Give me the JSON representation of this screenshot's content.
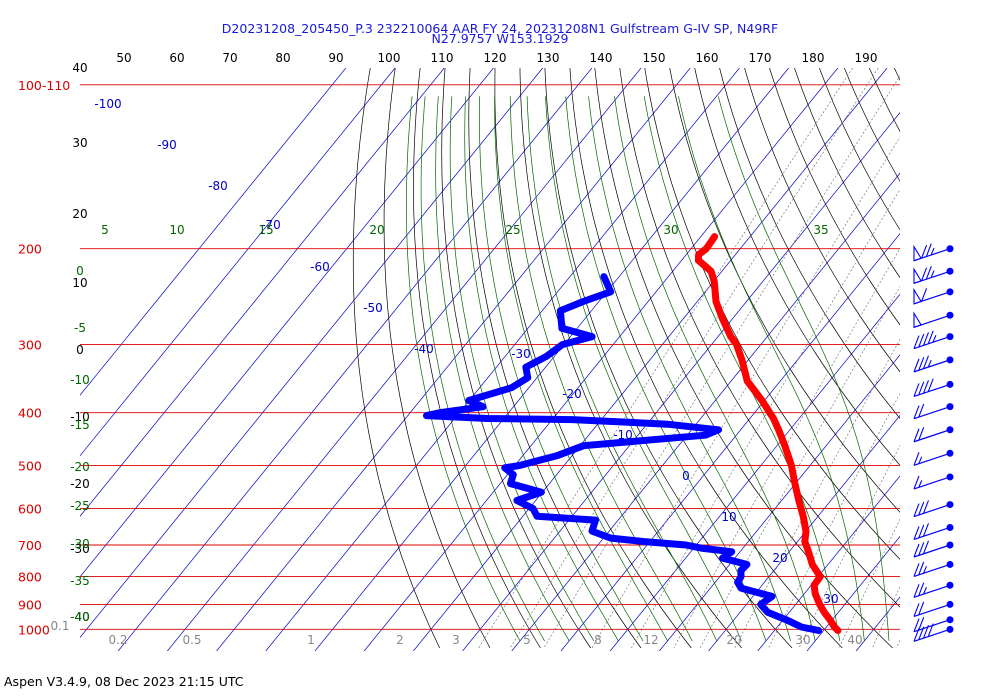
{
  "header": {
    "title": "D20231208_205450_P.3 232210064 AAR FY 24, 20231208N1 Gulfstream G-IV SP, N49RF",
    "location": "N27.9757 W153.1929"
  },
  "footer": {
    "version": "Aspen V3.4.9, 08 Dec 2023  21:15 UTC"
  },
  "colors": {
    "pressure": "#dd0000",
    "temp": "#ff0000",
    "dew": "#0000ff",
    "isotherm": "#0000cc",
    "dry_adiabat": "#000000",
    "moist_adiabat": "#006600",
    "mixing_ratio": "#777777"
  },
  "chart_data": {
    "type": "skew-t",
    "pressure_levels": [
      {
        "p": 100,
        "label": "100-110"
      },
      {
        "p": 200,
        "label": "200"
      },
      {
        "p": 300,
        "label": "300"
      },
      {
        "p": 400,
        "label": "400"
      },
      {
        "p": 500,
        "label": "500"
      },
      {
        "p": 600,
        "label": "600"
      },
      {
        "p": 700,
        "label": "700"
      },
      {
        "p": 800,
        "label": "800"
      },
      {
        "p": 900,
        "label": "900"
      },
      {
        "p": 1000,
        "label": "1000"
      }
    ],
    "top_temp_labels": [
      "50",
      "60",
      "70",
      "80",
      "90",
      "100",
      "110",
      "120",
      "130",
      "140",
      "150",
      "160",
      "170",
      "180",
      "190"
    ],
    "left_black_labels": [
      "40",
      "30",
      "20",
      "10",
      "0",
      "-10",
      "-20",
      "-30",
      "-40"
    ],
    "isotherm_labels": [
      "-100",
      "-90",
      "-80",
      "-70",
      "-60",
      "-50",
      "-40",
      "-30",
      "-20",
      "-10",
      "0",
      "10",
      "20",
      "30"
    ],
    "moist_labels_top": [
      "5",
      "10",
      "15",
      "20",
      "25",
      "30",
      "35"
    ],
    "moist_labels_left": [
      "0",
      "-5",
      "-10",
      "-15",
      "-20",
      "-25",
      "-30",
      "-35",
      "-40"
    ],
    "mixing_labels": [
      "0.1",
      "0.2",
      "0.5",
      "1",
      "2",
      "3",
      "5",
      "8",
      "12",
      "20",
      "30",
      "40"
    ],
    "temperature_profile": [
      [
        190,
        -67.2
      ],
      [
        200,
        -66.9
      ],
      [
        205,
        -67.5
      ],
      [
        210,
        -66.6
      ],
      [
        220,
        -62.2
      ],
      [
        230,
        -59.8
      ],
      [
        250,
        -56.2
      ],
      [
        270,
        -51.8
      ],
      [
        290,
        -47.4
      ],
      [
        300,
        -44.9
      ],
      [
        320,
        -41.3
      ],
      [
        350,
        -36.7
      ],
      [
        380,
        -30.5
      ],
      [
        410,
        -25.2
      ],
      [
        430,
        -22.3
      ],
      [
        460,
        -18.4
      ],
      [
        500,
        -13.8
      ],
      [
        540,
        -10.1
      ],
      [
        580,
        -6.5
      ],
      [
        620,
        -3.0
      ],
      [
        660,
        0.0
      ],
      [
        690,
        1.5
      ],
      [
        720,
        3.9
      ],
      [
        760,
        6.8
      ],
      [
        800,
        10.4
      ],
      [
        830,
        10.6
      ],
      [
        860,
        12.2
      ],
      [
        900,
        14.9
      ],
      [
        930,
        17.1
      ],
      [
        960,
        19.5
      ],
      [
        990,
        21.6
      ],
      [
        1005,
        22.9
      ]
    ],
    "dewpoint_profile": [
      [
        225,
        -83.1
      ],
      [
        240,
        -79.2
      ],
      [
        250,
        -83.2
      ],
      [
        260,
        -86.3
      ],
      [
        280,
        -83.1
      ],
      [
        290,
        -75.6
      ],
      [
        300,
        -80.3
      ],
      [
        315,
        -81.6
      ],
      [
        330,
        -84.0
      ],
      [
        345,
        -81.9
      ],
      [
        360,
        -83.5
      ],
      [
        380,
        -90.1
      ],
      [
        390,
        -86.2
      ],
      [
        400,
        -93.8
      ],
      [
        405,
        -96.2
      ],
      [
        410,
        -83.3
      ],
      [
        412,
        -65.9
      ],
      [
        420,
        -45.8
      ],
      [
        430,
        -34.5
      ],
      [
        440,
        -36.3
      ],
      [
        460,
        -59.3
      ],
      [
        480,
        -63.1
      ],
      [
        500,
        -69.0
      ],
      [
        505,
        -71.7
      ],
      [
        520,
        -68.8
      ],
      [
        540,
        -67.9
      ],
      [
        560,
        -60.2
      ],
      [
        580,
        -63.8
      ],
      [
        600,
        -59.2
      ],
      [
        620,
        -57.1
      ],
      [
        630,
        -44.6
      ],
      [
        660,
        -43.5
      ],
      [
        680,
        -38.5
      ],
      [
        690,
        -31.1
      ],
      [
        700,
        -22.1
      ],
      [
        710,
        -18.1
      ],
      [
        720,
        -11.7
      ],
      [
        740,
        -12.5
      ],
      [
        760,
        -6.5
      ],
      [
        780,
        -6.7
      ],
      [
        800,
        -5.7
      ],
      [
        820,
        -5.4
      ],
      [
        840,
        -3.8
      ],
      [
        870,
        3.9
      ],
      [
        900,
        2.9
      ],
      [
        930,
        5.6
      ],
      [
        960,
        10.6
      ],
      [
        990,
        14.9
      ],
      [
        1005,
        19.0
      ]
    ],
    "wind_barbs": [
      {
        "p": 200,
        "speed": 75
      },
      {
        "p": 220,
        "speed": 75
      },
      {
        "p": 240,
        "speed": 60
      },
      {
        "p": 265,
        "speed": 50
      },
      {
        "p": 290,
        "speed": 45
      },
      {
        "p": 320,
        "speed": 35
      },
      {
        "p": 355,
        "speed": 40
      },
      {
        "p": 390,
        "speed": 20
      },
      {
        "p": 430,
        "speed": 20
      },
      {
        "p": 475,
        "speed": 15
      },
      {
        "p": 525,
        "speed": 15
      },
      {
        "p": 590,
        "speed": 30
      },
      {
        "p": 650,
        "speed": 30
      },
      {
        "p": 700,
        "speed": 30
      },
      {
        "p": 760,
        "speed": 25
      },
      {
        "p": 830,
        "speed": 25
      },
      {
        "p": 900,
        "speed": 20
      },
      {
        "p": 960,
        "speed": 20
      },
      {
        "p": 1000,
        "speed": 40
      }
    ]
  }
}
